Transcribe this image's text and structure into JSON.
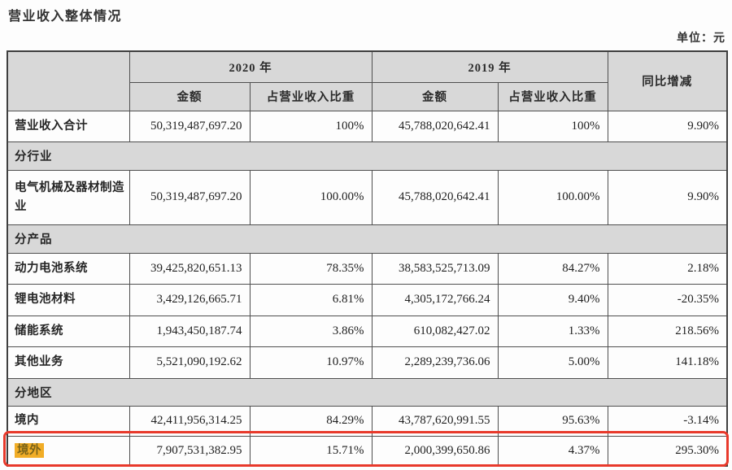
{
  "title": "营业收入整体情况",
  "unit_label": "单位：元",
  "colors": {
    "accent_red": "#e8392b",
    "highlight_gold": "#f1ad27",
    "header_bg": "#d8d8d8"
  },
  "table": {
    "header": {
      "year_2020": "2020 年",
      "year_2019": "2019 年",
      "amount": "金额",
      "ratio": "占营业收入比重",
      "amount2": "金额",
      "ratio2": "占营业收入比重",
      "yoy": "同比增减"
    },
    "rows": [
      {
        "type": "data",
        "label": "营业收入合计",
        "cells": [
          "50,319,487,697.20",
          "100%",
          "45,788,020,642.41",
          "100%",
          "9.90%"
        ]
      },
      {
        "type": "section",
        "label": "分行业"
      },
      {
        "type": "data",
        "label": "电气机械及器材制造业",
        "cells": [
          "50,319,487,697.20",
          "100.00%",
          "45,788,020,642.41",
          "100.00%",
          "9.90%"
        ]
      },
      {
        "type": "section",
        "label": "分产品"
      },
      {
        "type": "data",
        "label": "动力电池系统",
        "cells": [
          "39,425,820,651.13",
          "78.35%",
          "38,583,525,713.09",
          "84.27%",
          "2.18%"
        ]
      },
      {
        "type": "data",
        "label": "锂电池材料",
        "cells": [
          "3,429,126,665.71",
          "6.81%",
          "4,305,172,766.24",
          "9.40%",
          "-20.35%"
        ]
      },
      {
        "type": "data",
        "label": "储能系统",
        "cells": [
          "1,943,450,187.74",
          "3.86%",
          "610,082,427.02",
          "1.33%",
          "218.56%"
        ]
      },
      {
        "type": "data",
        "label": "其他业务",
        "cells": [
          "5,521,090,192.62",
          "10.97%",
          "2,289,239,736.06",
          "5.00%",
          "141.18%"
        ]
      },
      {
        "type": "section",
        "label": "分地区"
      },
      {
        "type": "data",
        "label": "境内",
        "cells": [
          "42,411,956,314.25",
          "84.29%",
          "43,787,620,991.55",
          "95.63%",
          "-3.14%"
        ]
      },
      {
        "type": "data",
        "label": "境外",
        "highlighted": true,
        "cells": [
          "7,907,531,382.95",
          "15.71%",
          "2,000,399,650.86",
          "4.37%",
          "295.30%"
        ]
      }
    ]
  }
}
